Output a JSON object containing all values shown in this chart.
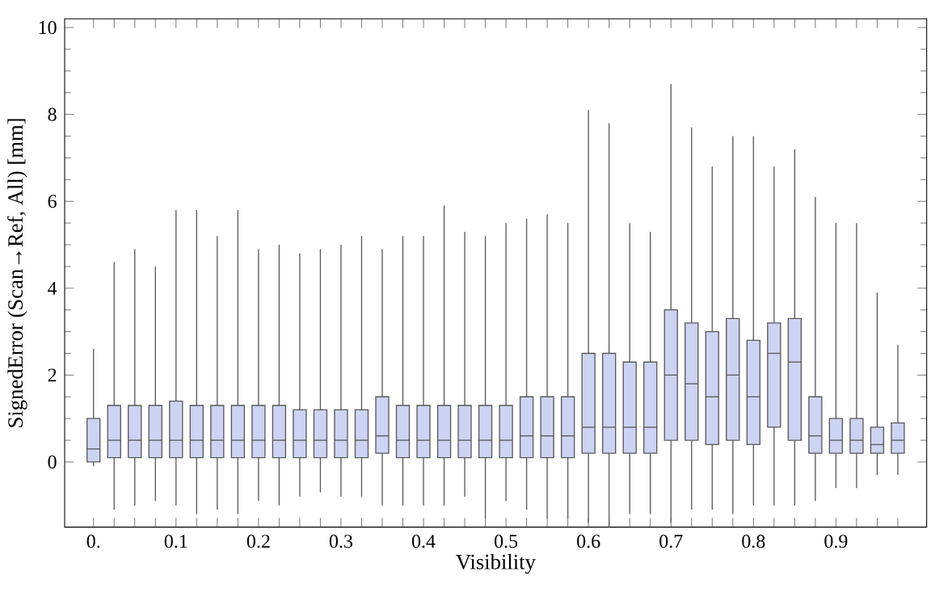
{
  "chart_data": {
    "type": "box",
    "xlabel": "Visibility",
    "ylabel": "SignedError (Scan→Ref, All) [mm]",
    "color": "#cdd3f2",
    "x": [
      0,
      0.025,
      0.05,
      0.075,
      0.1,
      0.125,
      0.15,
      0.175,
      0.2,
      0.225,
      0.25,
      0.275,
      0.3,
      0.325,
      0.35,
      0.375,
      0.4,
      0.425,
      0.45,
      0.475,
      0.5,
      0.525,
      0.55,
      0.575,
      0.6,
      0.625,
      0.65,
      0.675,
      0.7,
      0.725,
      0.75,
      0.775,
      0.8,
      0.825,
      0.85,
      0.875,
      0.9,
      0.925,
      0.95,
      0.975
    ],
    "boxes": [
      {
        "low": -0.1,
        "q1": 0,
        "median": 0.3,
        "q3": 1,
        "high": 2.6
      },
      {
        "low": -1.1,
        "q1": 0.1,
        "median": 0.5,
        "q3": 1.3,
        "high": 4.6
      },
      {
        "low": -1.0,
        "q1": 0.1,
        "median": 0.5,
        "q3": 1.3,
        "high": 4.9
      },
      {
        "low": -0.9,
        "q1": 0.1,
        "median": 0.5,
        "q3": 1.3,
        "high": 4.5
      },
      {
        "low": -1.0,
        "q1": 0.1,
        "median": 0.5,
        "q3": 1.4,
        "high": 5.8
      },
      {
        "low": -1.2,
        "q1": 0.1,
        "median": 0.5,
        "q3": 1.3,
        "high": 5.8
      },
      {
        "low": -1.1,
        "q1": 0.1,
        "median": 0.5,
        "q3": 1.3,
        "high": 5.2
      },
      {
        "low": -1.2,
        "q1": 0.1,
        "median": 0.5,
        "q3": 1.3,
        "high": 5.8
      },
      {
        "low": -0.9,
        "q1": 0.1,
        "median": 0.5,
        "q3": 1.3,
        "high": 4.9
      },
      {
        "low": -1.0,
        "q1": 0.1,
        "median": 0.5,
        "q3": 1.3,
        "high": 5.0
      },
      {
        "low": -0.8,
        "q1": 0.1,
        "median": 0.5,
        "q3": 1.2,
        "high": 4.8
      },
      {
        "low": -0.7,
        "q1": 0.1,
        "median": 0.5,
        "q3": 1.2,
        "high": 4.9
      },
      {
        "low": -0.8,
        "q1": 0.1,
        "median": 0.5,
        "q3": 1.2,
        "high": 5.0
      },
      {
        "low": -0.8,
        "q1": 0.1,
        "median": 0.5,
        "q3": 1.2,
        "high": 5.2
      },
      {
        "low": -1.0,
        "q1": 0.2,
        "median": 0.6,
        "q3": 1.5,
        "high": 4.9
      },
      {
        "low": -1.0,
        "q1": 0.1,
        "median": 0.5,
        "q3": 1.3,
        "high": 5.2
      },
      {
        "low": -1.0,
        "q1": 0.1,
        "median": 0.5,
        "q3": 1.3,
        "high": 5.2
      },
      {
        "low": -1.0,
        "q1": 0.1,
        "median": 0.5,
        "q3": 1.3,
        "high": 5.9
      },
      {
        "low": -0.8,
        "q1": 0.1,
        "median": 0.5,
        "q3": 1.3,
        "high": 5.3
      },
      {
        "low": -1.3,
        "q1": 0.1,
        "median": 0.5,
        "q3": 1.3,
        "high": 5.2
      },
      {
        "low": -0.9,
        "q1": 0.1,
        "median": 0.5,
        "q3": 1.3,
        "high": 5.5
      },
      {
        "low": -1.1,
        "q1": 0.1,
        "median": 0.6,
        "q3": 1.5,
        "high": 5.6
      },
      {
        "low": -1.3,
        "q1": 0.1,
        "median": 0.6,
        "q3": 1.5,
        "high": 5.7
      },
      {
        "low": -1.3,
        "q1": 0.1,
        "median": 0.6,
        "q3": 1.5,
        "high": 5.5
      },
      {
        "low": -1.4,
        "q1": 0.2,
        "median": 0.8,
        "q3": 2.5,
        "high": 8.1
      },
      {
        "low": -1.5,
        "q1": 0.2,
        "median": 0.8,
        "q3": 2.5,
        "high": 7.8
      },
      {
        "low": -1.2,
        "q1": 0.2,
        "median": 0.8,
        "q3": 2.3,
        "high": 5.5
      },
      {
        "low": -1.2,
        "q1": 0.2,
        "median": 0.8,
        "q3": 2.3,
        "high": 5.3
      },
      {
        "low": -1.4,
        "q1": 0.5,
        "median": 2,
        "q3": 3.5,
        "high": 8.7
      },
      {
        "low": -1.1,
        "q1": 0.5,
        "median": 1.8,
        "q3": 3.2,
        "high": 7.7
      },
      {
        "low": -1.1,
        "q1": 0.4,
        "median": 1.5,
        "q3": 3,
        "high": 6.8
      },
      {
        "low": -1.2,
        "q1": 0.5,
        "median": 2,
        "q3": 3.3,
        "high": 7.5
      },
      {
        "low": -1.0,
        "q1": 0.4,
        "median": 1.5,
        "q3": 2.8,
        "high": 7.5
      },
      {
        "low": -1.0,
        "q1": 0.8,
        "median": 2.5,
        "q3": 3.2,
        "high": 6.8
      },
      {
        "low": -1.0,
        "q1": 0.5,
        "median": 2.3,
        "q3": 3.3,
        "high": 7.2
      },
      {
        "low": -0.9,
        "q1": 0.2,
        "median": 0.6,
        "q3": 1.5,
        "high": 6.1
      },
      {
        "low": -0.6,
        "q1": 0.2,
        "median": 0.5,
        "q3": 1,
        "high": 5.5
      },
      {
        "low": -0.6,
        "q1": 0.2,
        "median": 0.5,
        "q3": 1,
        "high": 5.5
      },
      {
        "low": -0.3,
        "q1": 0.2,
        "median": 0.4,
        "q3": 0.8,
        "high": 3.9
      },
      {
        "low": -0.3,
        "q1": 0.2,
        "median": 0.5,
        "q3": 0.9,
        "high": 2.7
      }
    ],
    "xlim": [
      -0.035,
      1.01
    ],
    "ylim": [
      -1.5,
      10.2
    ],
    "xticks": [
      {
        "value": 0,
        "label": "0."
      },
      {
        "value": 0.025,
        "label": null
      },
      {
        "value": 0.05,
        "label": null
      },
      {
        "value": 0.075,
        "label": null
      },
      0.1,
      {
        "value": 0.125,
        "label": null
      },
      {
        "value": 0.15,
        "label": null
      },
      {
        "value": 0.175,
        "label": null
      },
      0.2,
      {
        "value": 0.225,
        "label": null
      },
      {
        "value": 0.25,
        "label": null
      },
      {
        "value": 0.275,
        "label": null
      },
      0.3,
      {
        "value": 0.325,
        "label": null
      },
      {
        "value": 0.35,
        "label": null
      },
      {
        "value": 0.375,
        "label": null
      },
      0.4,
      {
        "value": 0.425,
        "label": null
      },
      {
        "value": 0.45,
        "label": null
      },
      {
        "value": 0.475,
        "label": null
      },
      0.5,
      {
        "value": 0.525,
        "label": null
      },
      {
        "value": 0.55,
        "label": null
      },
      {
        "value": 0.575,
        "label": null
      },
      0.6,
      {
        "value": 0.625,
        "label": null
      },
      {
        "value": 0.65,
        "label": null
      },
      {
        "value": 0.675,
        "label": null
      },
      0.7,
      {
        "value": 0.725,
        "label": null
      },
      {
        "value": 0.75,
        "label": null
      },
      {
        "value": 0.775,
        "label": null
      },
      0.8,
      {
        "value": 0.825,
        "label": null
      },
      {
        "value": 0.85,
        "label": null
      },
      {
        "value": 0.875,
        "label": null
      },
      0.9,
      {
        "value": 0.925,
        "label": null
      },
      {
        "value": 0.95,
        "label": null
      },
      {
        "value": 0.975,
        "label": null
      }
    ],
    "yticks": [
      0,
      2,
      4,
      6,
      8,
      10
    ]
  }
}
